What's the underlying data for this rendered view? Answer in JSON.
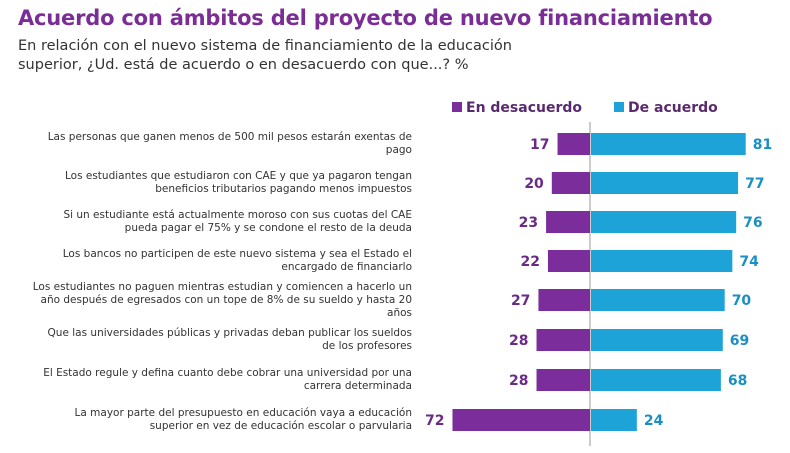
{
  "chart_data": {
    "type": "bar",
    "orientation": "horizontal-diverging",
    "title": "Acuerdo con ámbitos del proyecto de nuevo financiamiento",
    "subtitle": "En relación con el nuevo sistema de financiamiento de la educación superior, ¿Ud. está de acuerdo o en desacuerdo con que...? %",
    "legend_position": "top",
    "grid": false,
    "categories": [
      "Las personas que ganen menos de 500 mil pesos estarán exentas de pago",
      "Los estudiantes que estudiaron con CAE y que ya pagaron tengan beneficios tributarios pagando menos impuestos",
      "Si un estudiante está actualmente moroso con sus cuotas del CAE pueda pagar el 75% y se condone el resto de la deuda",
      "Los bancos no participen de este nuevo sistema y sea el Estado el encargado de financiarlo",
      "Los estudiantes no paguen mientras estudian y comiencen a hacerlo un año después de egresados con un tope de 8% de su sueldo y hasta 20 años",
      "Que las universidades públicas y privadas deban publicar los sueldos de los profesores",
      "El Estado regule y defina cuanto debe cobrar una universidad por una carrera determinada",
      "La mayor parte del presupuesto en educación vaya a educación superior en vez de educación escolar o parvularia"
    ],
    "series": [
      {
        "name": "En desacuerdo",
        "color": "#7b2d9b",
        "values": [
          17,
          20,
          23,
          22,
          27,
          28,
          28,
          72
        ]
      },
      {
        "name": "De acuerdo",
        "color": "#1ea3d9",
        "values": [
          81,
          77,
          76,
          74,
          70,
          69,
          68,
          24
        ]
      }
    ]
  }
}
